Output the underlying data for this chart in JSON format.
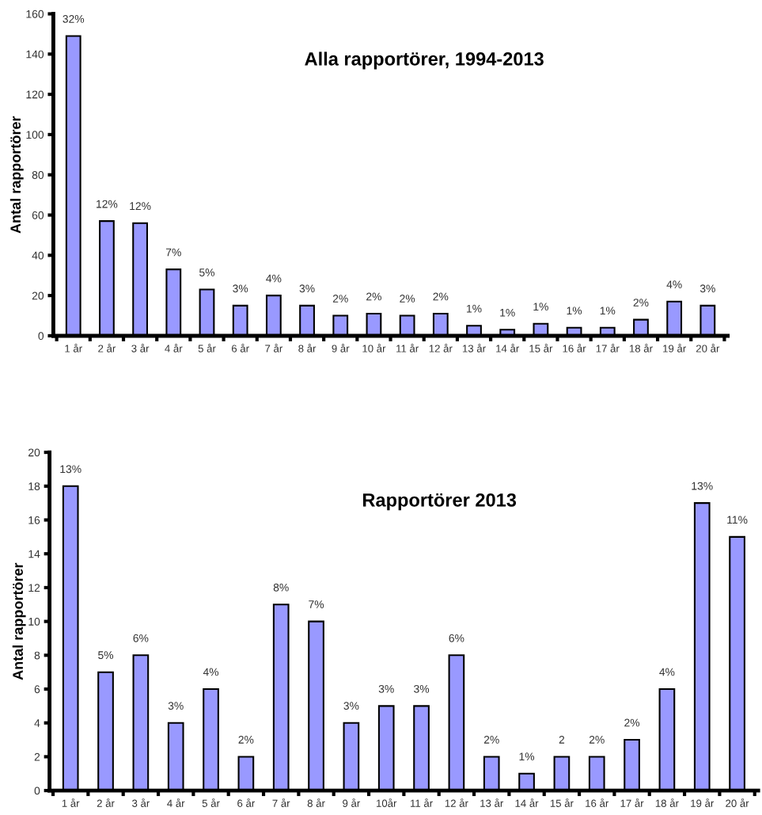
{
  "chart_data": [
    {
      "type": "bar",
      "title": "Alla rapportörer, 1994-2013",
      "ylabel": "Antal rapportörer",
      "categories": [
        "1 år",
        "2 år",
        "3 år",
        "4 år",
        "5 år",
        "6 år",
        "7 år",
        "8 år",
        "9 år",
        "10 år",
        "11 år",
        "12 år",
        "13 år",
        "14 år",
        "15 år",
        "16 år",
        "17 år",
        "18 år",
        "19 år",
        "20 år"
      ],
      "values": [
        149,
        57,
        56,
        33,
        23,
        15,
        20,
        15,
        10,
        11,
        10,
        11,
        5,
        3,
        6,
        4,
        4,
        8,
        17,
        15
      ],
      "annotations": [
        {
          "text": "32%",
          "x": "1 år",
          "y": 149
        },
        {
          "text": "12%",
          "x": "2 år",
          "y": 57
        },
        {
          "text": "12%",
          "x": "3 år",
          "y": 56
        },
        {
          "text": "7%",
          "x": "4 år",
          "y": 33
        },
        {
          "text": "5%",
          "x": "5 år",
          "y": 23
        },
        {
          "text": "3%",
          "x": "6 år",
          "y": 15
        },
        {
          "text": "4%",
          "x": "7 år",
          "y": 20
        },
        {
          "text": "3%",
          "x": "8 år",
          "y": 15
        },
        {
          "text": "2%",
          "x": "9 år",
          "y": 10
        },
        {
          "text": "2%",
          "x": "10 år",
          "y": 11
        },
        {
          "text": "2%",
          "x": "11 år",
          "y": 10
        },
        {
          "text": "2%",
          "x": "12 år",
          "y": 11
        },
        {
          "text": "1%",
          "x": "13 år",
          "y": 5
        },
        {
          "text": "1%",
          "x": "14 år",
          "y": 3
        },
        {
          "text": "1%",
          "x": "15 år",
          "y": 6
        },
        {
          "text": "1%",
          "x": "16 år",
          "y": 4
        },
        {
          "text": "1%",
          "x": "17 år",
          "y": 4
        },
        {
          "text": "2%",
          "x": "18 år",
          "y": 8
        },
        {
          "text": "4%",
          "x": "19 år",
          "y": 17
        },
        {
          "text": "3%",
          "x": "20 år",
          "y": 15
        }
      ],
      "color": "#9999ff",
      "ylim": [
        0,
        160
      ],
      "yticks": [
        0,
        20,
        40,
        60,
        80,
        100,
        120,
        140,
        160
      ],
      "grid": false
    },
    {
      "type": "bar",
      "title": "Rapportörer 2013",
      "ylabel": "Antal rapportörer",
      "categories": [
        "1 år",
        "2 år",
        "3 år",
        "4 år",
        "5 år",
        "6 år",
        "7 år",
        "8 år",
        "9 år",
        "10år",
        "11 år",
        "12 år",
        "13 år",
        "14 år",
        "15 år",
        "16 år",
        "17 år",
        "18 år",
        "19 år",
        "20 år"
      ],
      "values": [
        18,
        7,
        8,
        4,
        6,
        2,
        11,
        10,
        4,
        5,
        5,
        8,
        2,
        1,
        2,
        2,
        3,
        6,
        17,
        15
      ],
      "annotations": [
        {
          "text": "13%",
          "x": "1 år",
          "y": 18
        },
        {
          "text": "5%",
          "x": "2 år",
          "y": 7
        },
        {
          "text": "6%",
          "x": "3 år",
          "y": 8
        },
        {
          "text": "3%",
          "x": "4 år",
          "y": 4
        },
        {
          "text": "4%",
          "x": "5 år",
          "y": 6
        },
        {
          "text": "2%",
          "x": "6 år",
          "y": 2
        },
        {
          "text": "8%",
          "x": "7 år",
          "y": 11
        },
        {
          "text": "7%",
          "x": "8 år",
          "y": 10
        },
        {
          "text": "3%",
          "x": "9 år",
          "y": 4
        },
        {
          "text": "3%",
          "x": "10år",
          "y": 5
        },
        {
          "text": "3%",
          "x": "11 år",
          "y": 5
        },
        {
          "text": "6%",
          "x": "12 år",
          "y": 8
        },
        {
          "text": "2%",
          "x": "13 år",
          "y": 2
        },
        {
          "text": "1%",
          "x": "14 år",
          "y": 1
        },
        {
          "text": "2",
          "x": "15 år",
          "y": 2
        },
        {
          "text": "2%",
          "x": "16 år",
          "y": 2
        },
        {
          "text": "2%",
          "x": "17 år",
          "y": 3
        },
        {
          "text": "4%",
          "x": "18 år",
          "y": 6
        },
        {
          "text": "13%",
          "x": "19 år",
          "y": 17
        },
        {
          "text": "11%",
          "x": "20 år",
          "y": 15
        }
      ],
      "color": "#9999ff",
      "ylim": [
        0,
        20
      ],
      "yticks": [
        0,
        2,
        4,
        6,
        8,
        10,
        12,
        14,
        16,
        18,
        20
      ],
      "grid": false
    }
  ]
}
